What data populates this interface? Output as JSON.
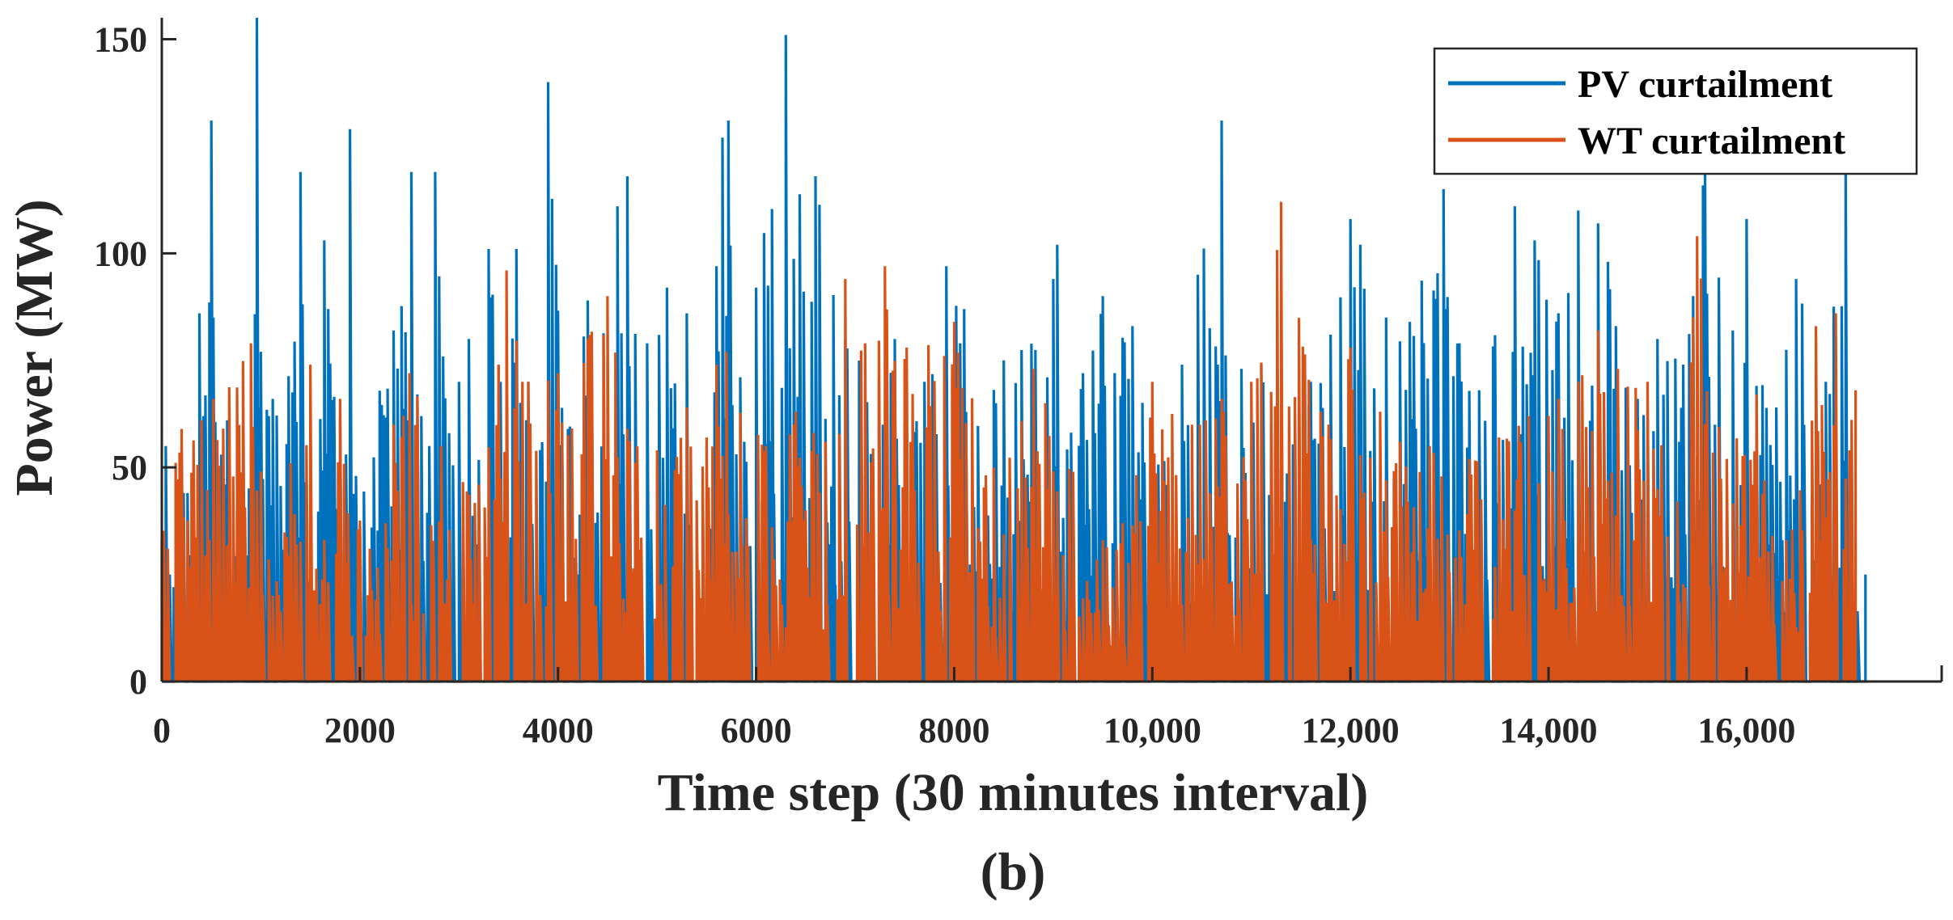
{
  "chart_data": {
    "type": "line",
    "panel_label": "(b)",
    "xlabel": "Time step (30 minutes interval)",
    "ylabel": "Power (MW)",
    "xlim": [
      0,
      17520
    ],
    "ylim": [
      0,
      155
    ],
    "x_ticks": [
      0,
      2000,
      4000,
      6000,
      8000,
      10000,
      12000,
      14000,
      16000
    ],
    "x_tick_labels": [
      "0",
      "2000",
      "4000",
      "6000",
      "8000",
      "10,000",
      "12,000",
      "14,000",
      "16,000"
    ],
    "y_ticks": [
      0,
      50,
      100,
      150
    ],
    "y_tick_labels": [
      "0",
      "50",
      "100",
      "150"
    ],
    "grid": false,
    "legend_position": "top-right",
    "series": [
      {
        "name": "PV curtailment",
        "color": "#0072BD",
        "points": [
          [
            0,
            0
          ],
          [
            40,
            55
          ],
          [
            80,
            25
          ],
          [
            160,
            47
          ],
          [
            260,
            44
          ],
          [
            380,
            86
          ],
          [
            420,
            62
          ],
          [
            500,
            131
          ],
          [
            520,
            85
          ],
          [
            600,
            53
          ],
          [
            660,
            61
          ],
          [
            760,
            40
          ],
          [
            820,
            44
          ],
          [
            950,
            155
          ],
          [
            990,
            77
          ],
          [
            1080,
            62
          ],
          [
            1120,
            66
          ],
          [
            1400,
            119
          ],
          [
            1500,
            49
          ],
          [
            1640,
            103
          ],
          [
            1680,
            87
          ],
          [
            1790,
            62
          ],
          [
            1900,
            129
          ],
          [
            1960,
            48
          ],
          [
            2340,
            82
          ],
          [
            2520,
            119
          ],
          [
            2620,
            62
          ],
          [
            2700,
            55
          ],
          [
            2760,
            119
          ],
          [
            2900,
            58
          ],
          [
            3000,
            70
          ],
          [
            3100,
            80
          ],
          [
            3300,
            101
          ],
          [
            3420,
            70
          ],
          [
            3580,
            101
          ],
          [
            3700,
            70
          ],
          [
            3900,
            140
          ],
          [
            4100,
            59
          ],
          [
            4300,
            89
          ],
          [
            4600,
            111
          ],
          [
            4700,
            118
          ],
          [
            4900,
            79
          ],
          [
            5100,
            92
          ],
          [
            5300,
            86
          ],
          [
            5600,
            97
          ],
          [
            5650,
            127
          ],
          [
            5720,
            131
          ],
          [
            6000,
            92
          ],
          [
            6300,
            151
          ],
          [
            6600,
            118
          ],
          [
            6900,
            80
          ],
          [
            7400,
            80
          ],
          [
            7700,
            70
          ],
          [
            7920,
            97
          ],
          [
            8100,
            87
          ],
          [
            8500,
            75
          ],
          [
            9000,
            94
          ],
          [
            9040,
            102
          ],
          [
            9300,
            72
          ],
          [
            9500,
            90
          ],
          [
            9800,
            83
          ],
          [
            10100,
            50
          ],
          [
            10300,
            74
          ],
          [
            10700,
            131
          ],
          [
            10900,
            73
          ],
          [
            11100,
            74
          ],
          [
            11300,
            50
          ],
          [
            11600,
            70
          ],
          [
            11800,
            81
          ],
          [
            12000,
            108
          ],
          [
            12100,
            102
          ],
          [
            12350,
            85
          ],
          [
            12600,
            84
          ],
          [
            12930,
            115
          ],
          [
            13100,
            79
          ],
          [
            13300,
            68
          ],
          [
            13660,
            111
          ],
          [
            13860,
            103
          ],
          [
            14100,
            86
          ],
          [
            14300,
            110
          ],
          [
            14500,
            107
          ],
          [
            14600,
            98
          ],
          [
            14900,
            66
          ],
          [
            15100,
            80
          ],
          [
            15350,
            74
          ],
          [
            15580,
            120
          ],
          [
            15850,
            82
          ],
          [
            16000,
            108
          ],
          [
            16300,
            64
          ],
          [
            16500,
            94
          ],
          [
            16800,
            70
          ],
          [
            17000,
            120
          ],
          [
            17200,
            25
          ]
        ]
      },
      {
        "name": "WT curtailment",
        "color": "#D95319",
        "points": [
          [
            0,
            33
          ],
          [
            200,
            59
          ],
          [
            400,
            61
          ],
          [
            520,
            66
          ],
          [
            900,
            79
          ],
          [
            1000,
            49
          ],
          [
            1300,
            51
          ],
          [
            1500,
            74
          ],
          [
            1800,
            66
          ],
          [
            2100,
            31
          ],
          [
            2340,
            60
          ],
          [
            2500,
            72
          ],
          [
            2820,
            55
          ],
          [
            3200,
            46
          ],
          [
            3400,
            74
          ],
          [
            3480,
            96
          ],
          [
            3700,
            70
          ],
          [
            4000,
            72
          ],
          [
            4300,
            80
          ],
          [
            4500,
            90
          ],
          [
            4700,
            59
          ],
          [
            5000,
            54
          ],
          [
            5300,
            64
          ],
          [
            5600,
            74
          ],
          [
            5700,
            77
          ],
          [
            6100,
            55
          ],
          [
            6400,
            63
          ],
          [
            6700,
            56
          ],
          [
            6900,
            94
          ],
          [
            7100,
            79
          ],
          [
            7300,
            97
          ],
          [
            7520,
            78
          ],
          [
            8000,
            84
          ],
          [
            8400,
            50
          ],
          [
            8800,
            73
          ],
          [
            9200,
            49
          ],
          [
            9500,
            33
          ],
          [
            9700,
            37
          ],
          [
            10000,
            70
          ],
          [
            10400,
            60
          ],
          [
            10700,
            66
          ],
          [
            11000,
            70
          ],
          [
            11300,
            112
          ],
          [
            11700,
            63
          ],
          [
            12000,
            78
          ],
          [
            12300,
            63
          ],
          [
            12500,
            56
          ],
          [
            12800,
            55
          ],
          [
            13200,
            52
          ],
          [
            13500,
            57
          ],
          [
            13800,
            62
          ],
          [
            14100,
            66
          ],
          [
            14300,
            70
          ],
          [
            14500,
            82
          ],
          [
            14700,
            73
          ],
          [
            15000,
            70
          ],
          [
            15300,
            42
          ],
          [
            15500,
            104
          ],
          [
            15800,
            52
          ],
          [
            16100,
            67
          ],
          [
            16400,
            33
          ],
          [
            16700,
            83
          ],
          [
            16900,
            86
          ],
          [
            17100,
            68
          ]
        ]
      }
    ]
  }
}
